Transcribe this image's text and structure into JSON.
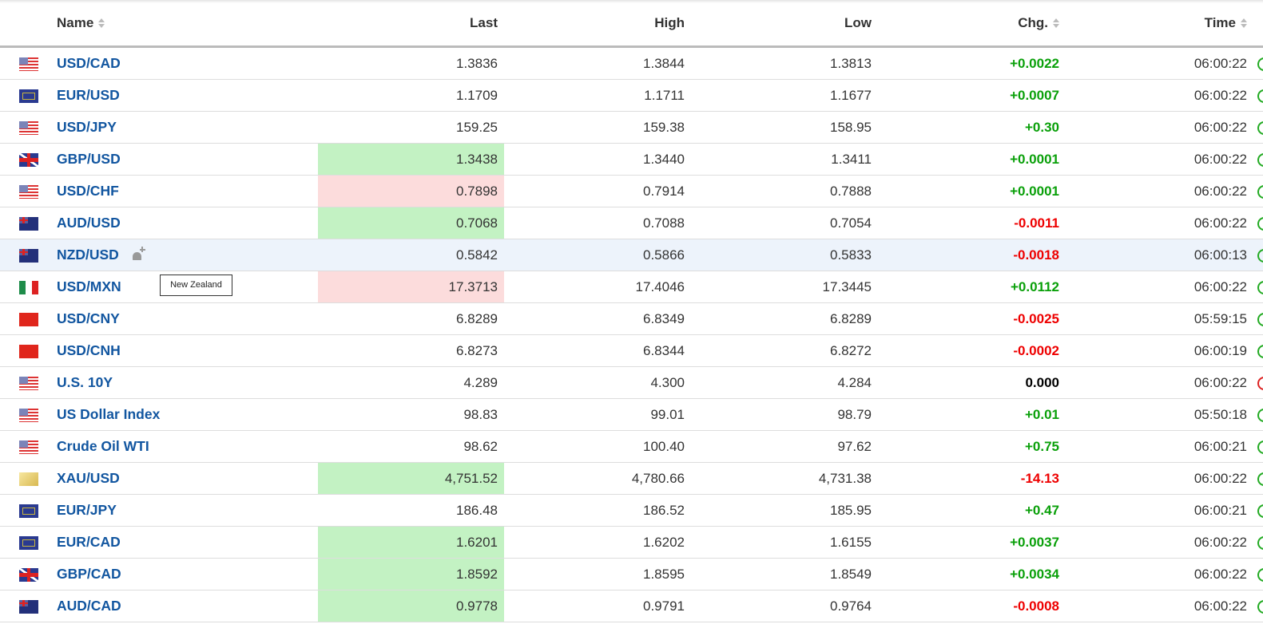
{
  "headers": {
    "name": "Name",
    "last": "Last",
    "high": "High",
    "low": "Low",
    "chg": "Chg.",
    "time": "Time"
  },
  "rows": [
    {
      "flag": "us",
      "name": "USD/CAD",
      "last": "1.3836",
      "high": "1.3844",
      "low": "1.3813",
      "chg": "+0.0022",
      "dir": "pos",
      "time": "06:00:22",
      "hl": "",
      "clock": "green"
    },
    {
      "flag": "eu",
      "name": "EUR/USD",
      "last": "1.1709",
      "high": "1.1711",
      "low": "1.1677",
      "chg": "+0.0007",
      "dir": "pos",
      "time": "06:00:22",
      "hl": "",
      "clock": "green"
    },
    {
      "flag": "us",
      "name": "USD/JPY",
      "last": "159.25",
      "high": "159.38",
      "low": "158.95",
      "chg": "+0.30",
      "dir": "pos",
      "time": "06:00:22",
      "hl": "",
      "clock": "green"
    },
    {
      "flag": "gb",
      "name": "GBP/USD",
      "last": "1.3438",
      "high": "1.3440",
      "low": "1.3411",
      "chg": "+0.0001",
      "dir": "pos",
      "time": "06:00:22",
      "hl": "up",
      "clock": "green"
    },
    {
      "flag": "us",
      "name": "USD/CHF",
      "last": "0.7898",
      "high": "0.7914",
      "low": "0.7888",
      "chg": "+0.0001",
      "dir": "pos",
      "time": "06:00:22",
      "hl": "down",
      "clock": "green"
    },
    {
      "flag": "au",
      "name": "AUD/USD",
      "last": "0.7068",
      "high": "0.7088",
      "low": "0.7054",
      "chg": "-0.0011",
      "dir": "neg",
      "time": "06:00:22",
      "hl": "up",
      "clock": "green"
    },
    {
      "flag": "au",
      "name": "NZD/USD",
      "last": "0.5842",
      "high": "0.5866",
      "low": "0.5833",
      "chg": "-0.0018",
      "dir": "neg",
      "time": "06:00:13",
      "hl": "",
      "clock": "green",
      "hover": true
    },
    {
      "flag": "mx",
      "name": "USD/MXN",
      "last": "17.3713",
      "high": "17.4046",
      "low": "17.3445",
      "chg": "+0.0112",
      "dir": "pos",
      "time": "06:00:22",
      "hl": "down",
      "clock": "green"
    },
    {
      "flag": "cn",
      "name": "USD/CNY",
      "last": "6.8289",
      "high": "6.8349",
      "low": "6.8289",
      "chg": "-0.0025",
      "dir": "neg",
      "time": "05:59:15",
      "hl": "",
      "clock": "green"
    },
    {
      "flag": "cn",
      "name": "USD/CNH",
      "last": "6.8273",
      "high": "6.8344",
      "low": "6.8272",
      "chg": "-0.0002",
      "dir": "neg",
      "time": "06:00:19",
      "hl": "",
      "clock": "green"
    },
    {
      "flag": "us",
      "name": "U.S. 10Y",
      "last": "4.289",
      "high": "4.300",
      "low": "4.284",
      "chg": "0.000",
      "dir": "zero",
      "time": "06:00:22",
      "hl": "",
      "clock": "red"
    },
    {
      "flag": "us",
      "name": "US Dollar Index",
      "last": "98.83",
      "high": "99.01",
      "low": "98.79",
      "chg": "+0.01",
      "dir": "pos",
      "time": "05:50:18",
      "hl": "",
      "clock": "green"
    },
    {
      "flag": "us",
      "name": "Crude Oil WTI",
      "last": "98.62",
      "high": "100.40",
      "low": "97.62",
      "chg": "+0.75",
      "dir": "pos",
      "time": "06:00:21",
      "hl": "",
      "clock": "green"
    },
    {
      "flag": "xau",
      "name": "XAU/USD",
      "last": "4,751.52",
      "high": "4,780.66",
      "low": "4,731.38",
      "chg": "-14.13",
      "dir": "neg",
      "time": "06:00:22",
      "hl": "up",
      "clock": "green"
    },
    {
      "flag": "eu",
      "name": "EUR/JPY",
      "last": "186.48",
      "high": "186.52",
      "low": "185.95",
      "chg": "+0.47",
      "dir": "pos",
      "time": "06:00:21",
      "hl": "",
      "clock": "green"
    },
    {
      "flag": "eu",
      "name": "EUR/CAD",
      "last": "1.6201",
      "high": "1.6202",
      "low": "1.6155",
      "chg": "+0.0037",
      "dir": "pos",
      "time": "06:00:22",
      "hl": "up",
      "clock": "green"
    },
    {
      "flag": "gb",
      "name": "GBP/CAD",
      "last": "1.8592",
      "high": "1.8595",
      "low": "1.8549",
      "chg": "+0.0034",
      "dir": "pos",
      "time": "06:00:22",
      "hl": "up",
      "clock": "green"
    },
    {
      "flag": "au",
      "name": "AUD/CAD",
      "last": "0.9778",
      "high": "0.9791",
      "low": "0.9764",
      "chg": "-0.0008",
      "dir": "neg",
      "time": "06:00:22",
      "hl": "up",
      "clock": "green"
    }
  ],
  "tooltip": "New Zealand"
}
